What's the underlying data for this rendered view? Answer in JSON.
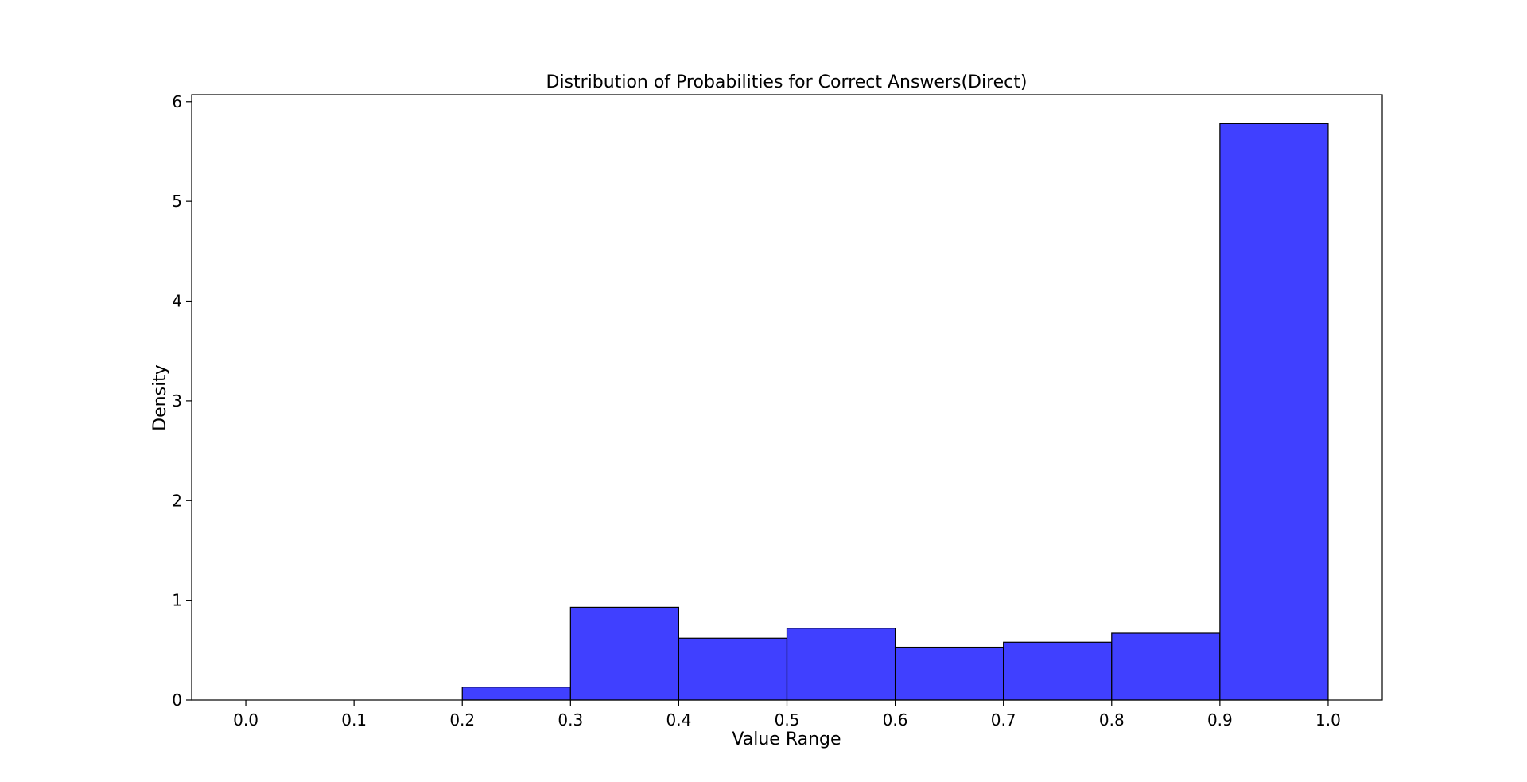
{
  "chart_data": {
    "type": "bar",
    "subtype": "histogram",
    "title": "Distribution of Probabilities for Correct Answers(Direct)",
    "xlabel": "Value Range",
    "ylabel": "Density",
    "xlim": [
      -0.05,
      1.05
    ],
    "ylim": [
      0,
      6.07
    ],
    "x_ticks": [
      "0.0",
      "0.1",
      "0.2",
      "0.3",
      "0.4",
      "0.5",
      "0.6",
      "0.7",
      "0.8",
      "0.9",
      "1.0"
    ],
    "y_ticks": [
      "0",
      "1",
      "2",
      "3",
      "4",
      "5",
      "6"
    ],
    "bins": [
      {
        "start": 0.0,
        "end": 0.1,
        "value": 0.0
      },
      {
        "start": 0.1,
        "end": 0.2,
        "value": 0.0
      },
      {
        "start": 0.2,
        "end": 0.3,
        "value": 0.13
      },
      {
        "start": 0.3,
        "end": 0.4,
        "value": 0.93
      },
      {
        "start": 0.4,
        "end": 0.5,
        "value": 0.62
      },
      {
        "start": 0.5,
        "end": 0.6,
        "value": 0.72
      },
      {
        "start": 0.6,
        "end": 0.7,
        "value": 0.53
      },
      {
        "start": 0.7,
        "end": 0.8,
        "value": 0.58
      },
      {
        "start": 0.8,
        "end": 0.9,
        "value": 0.67
      },
      {
        "start": 0.9,
        "end": 1.0,
        "value": 5.78
      }
    ],
    "bar_color": "#4040ff",
    "edge_color": "#000000",
    "grid": false,
    "legend": "none"
  }
}
